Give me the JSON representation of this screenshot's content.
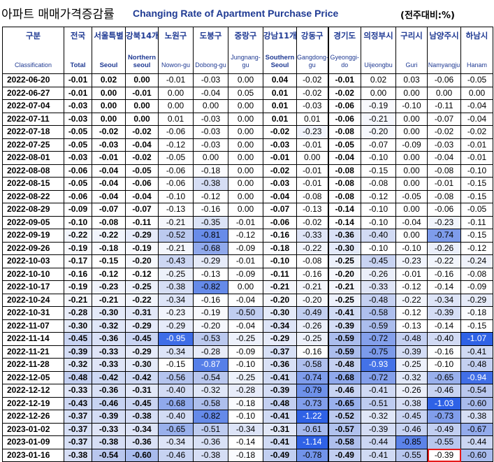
{
  "title": {
    "korean": "아파트 매매가격증감률",
    "english": "Changing Rate of Apartment Purchase Price",
    "unit": "(전주대비:%)"
  },
  "columns": [
    {
      "ko": "구분",
      "en": "Classification"
    },
    {
      "ko": "전국",
      "en": "Total"
    },
    {
      "ko": "서울특별",
      "en": "Seoul"
    },
    {
      "ko": "강북14개",
      "en": "Northern seoul"
    },
    {
      "ko": "노원구",
      "en": "Nowon-gu"
    },
    {
      "ko": "도봉구",
      "en": "Dobong-gu"
    },
    {
      "ko": "중랑구",
      "en": "Jungnang-gu"
    },
    {
      "ko": "강남11개",
      "en": "Southern Seoul"
    },
    {
      "ko": "강동구",
      "en": "Gangdong-gu"
    },
    {
      "ko": "경기도",
      "en": "Gyeonggi-do"
    },
    {
      "ko": "의정부시",
      "en": "Uijeongbu"
    },
    {
      "ko": "구리시",
      "en": "Guri"
    },
    {
      "ko": "남양주시",
      "en": "Namyangju"
    },
    {
      "ko": "하남시",
      "en": "Hanam"
    }
  ],
  "rows": [
    {
      "date": "2022-06-20",
      "values": [
        "-0.01",
        "0.02",
        "0.00",
        "-0.01",
        "-0.03",
        "0.00",
        "0.04",
        "-0.02",
        "-0.01",
        "0.02",
        "0.03",
        "-0.06",
        "-0.05"
      ]
    },
    {
      "date": "2022-06-27",
      "values": [
        "-0.01",
        "0.00",
        "-0.01",
        "0.00",
        "-0.04",
        "0.05",
        "0.01",
        "-0.02",
        "-0.02",
        "0.00",
        "0.00",
        "0.00",
        "0.00"
      ]
    },
    {
      "date": "2022-07-04",
      "values": [
        "-0.03",
        "0.00",
        "0.00",
        "0.00",
        "0.00",
        "0.00",
        "0.01",
        "-0.03",
        "-0.06",
        "-0.19",
        "-0.10",
        "-0.11",
        "-0.04"
      ]
    },
    {
      "date": "2022-07-11",
      "values": [
        "-0.03",
        "0.00",
        "0.00",
        "0.01",
        "-0.03",
        "0.00",
        "0.01",
        "0.01",
        "-0.06",
        "-0.21",
        "0.00",
        "-0.07",
        "-0.04"
      ]
    },
    {
      "date": "2022-07-18",
      "values": [
        "-0.05",
        "-0.02",
        "-0.02",
        "-0.06",
        "-0.03",
        "0.00",
        "-0.02",
        "-0.23",
        "-0.08",
        "-0.20",
        "0.00",
        "-0.02",
        "-0.02"
      ]
    },
    {
      "date": "2022-07-25",
      "values": [
        "-0.05",
        "-0.03",
        "-0.04",
        "-0.12",
        "-0.03",
        "0.00",
        "-0.03",
        "-0.01",
        "-0.05",
        "-0.07",
        "-0.09",
        "-0.03",
        "-0.01"
      ]
    },
    {
      "date": "2022-08-01",
      "values": [
        "-0.03",
        "-0.01",
        "-0.02",
        "-0.05",
        "0.00",
        "0.00",
        "-0.01",
        "0.00",
        "-0.04",
        "-0.10",
        "0.00",
        "-0.04",
        "-0.01"
      ]
    },
    {
      "date": "2022-08-08",
      "values": [
        "-0.06",
        "-0.04",
        "-0.05",
        "-0.06",
        "-0.18",
        "0.00",
        "-0.02",
        "-0.01",
        "-0.08",
        "-0.15",
        "0.00",
        "-0.08",
        "-0.10"
      ]
    },
    {
      "date": "2022-08-15",
      "values": [
        "-0.05",
        "-0.04",
        "-0.06",
        "-0.06",
        "-0.38",
        "0.00",
        "-0.03",
        "-0.01",
        "-0.08",
        "-0.08",
        "0.00",
        "-0.01",
        "-0.15"
      ]
    },
    {
      "date": "2022-08-22",
      "values": [
        "-0.06",
        "-0.04",
        "-0.04",
        "-0.10",
        "-0.12",
        "0.00",
        "-0.04",
        "-0.08",
        "-0.08",
        "-0.12",
        "-0.05",
        "-0.08",
        "-0.15"
      ]
    },
    {
      "date": "2022-08-29",
      "values": [
        "-0.09",
        "-0.07",
        "-0.07",
        "-0.13",
        "-0.16",
        "0.00",
        "-0.07",
        "-0.13",
        "-0.14",
        "-0.10",
        "0.00",
        "-0.06",
        "-0.05"
      ]
    },
    {
      "date": "2022-09-05",
      "values": [
        "-0.10",
        "-0.08",
        "-0.11",
        "-0.21",
        "-0.35",
        "-0.01",
        "-0.06",
        "-0.02",
        "-0.14",
        "-0.10",
        "-0.04",
        "-0.23",
        "-0.11"
      ]
    },
    {
      "date": "2022-09-19",
      "values": [
        "-0.22",
        "-0.22",
        "-0.29",
        "-0.52",
        "-0.81",
        "-0.12",
        "-0.16",
        "-0.33",
        "-0.36",
        "-0.40",
        "0.00",
        "-0.74",
        "-0.15"
      ]
    },
    {
      "date": "2022-09-26",
      "values": [
        "-0.19",
        "-0.18",
        "-0.19",
        "-0.21",
        "-0.68",
        "-0.09",
        "-0.18",
        "-0.22",
        "-0.30",
        "-0.10",
        "-0.10",
        "-0.26",
        "-0.12"
      ]
    },
    {
      "date": "2022-10-03",
      "values": [
        "-0.17",
        "-0.15",
        "-0.20",
        "-0.43",
        "-0.29",
        "-0.01",
        "-0.10",
        "-0.08",
        "-0.25",
        "-0.45",
        "-0.23",
        "-0.22",
        "-0.24"
      ]
    },
    {
      "date": "2022-10-10",
      "values": [
        "-0.16",
        "-0.12",
        "-0.12",
        "-0.25",
        "-0.13",
        "-0.09",
        "-0.11",
        "-0.16",
        "-0.20",
        "-0.26",
        "-0.01",
        "-0.16",
        "-0.08"
      ]
    },
    {
      "date": "2022-10-17",
      "values": [
        "-0.19",
        "-0.23",
        "-0.25",
        "-0.38",
        "-0.82",
        "0.00",
        "-0.21",
        "-0.21",
        "-0.21",
        "-0.33",
        "-0.12",
        "-0.14",
        "-0.09"
      ]
    },
    {
      "date": "2022-10-24",
      "values": [
        "-0.21",
        "-0.21",
        "-0.22",
        "-0.34",
        "-0.16",
        "-0.04",
        "-0.20",
        "-0.20",
        "-0.25",
        "-0.48",
        "-0.22",
        "-0.34",
        "-0.29"
      ]
    },
    {
      "date": "2022-10-31",
      "values": [
        "-0.28",
        "-0.30",
        "-0.31",
        "-0.23",
        "-0.19",
        "-0.50",
        "-0.30",
        "-0.49",
        "-0.41",
        "-0.58",
        "-0.12",
        "-0.39",
        "-0.18"
      ]
    },
    {
      "date": "2022-11-07",
      "values": [
        "-0.30",
        "-0.32",
        "-0.29",
        "-0.29",
        "-0.20",
        "-0.04",
        "-0.34",
        "-0.26",
        "-0.39",
        "-0.59",
        "-0.13",
        "-0.14",
        "-0.15"
      ]
    },
    {
      "date": "2022-11-14",
      "values": [
        "-0.45",
        "-0.36",
        "-0.45",
        "-0.95",
        "-0.53",
        "-0.25",
        "-0.29",
        "-0.25",
        "-0.59",
        "-0.72",
        "-0.48",
        "-0.40",
        "-1.07"
      ]
    },
    {
      "date": "2022-11-21",
      "values": [
        "-0.39",
        "-0.33",
        "-0.29",
        "-0.34",
        "-0.28",
        "-0.09",
        "-0.37",
        "-0.16",
        "-0.59",
        "-0.75",
        "-0.39",
        "-0.16",
        "-0.41"
      ]
    },
    {
      "date": "2022-11-28",
      "values": [
        "-0.32",
        "-0.33",
        "-0.30",
        "-0.15",
        "-0.87",
        "-0.10",
        "-0.36",
        "-0.58",
        "-0.48",
        "-0.93",
        "-0.25",
        "-0.10",
        "-0.48"
      ]
    },
    {
      "date": "2022-12-05",
      "values": [
        "-0.48",
        "-0.42",
        "-0.42",
        "-0.56",
        "-0.54",
        "-0.25",
        "-0.41",
        "-0.74",
        "-0.68",
        "-0.72",
        "-0.32",
        "-0.65",
        "-0.94"
      ]
    },
    {
      "date": "2022-12-12",
      "values": [
        "-0.33",
        "-0.36",
        "-0.31",
        "-0.40",
        "-0.32",
        "-0.28",
        "-0.39",
        "-0.79",
        "-0.46",
        "-0.41",
        "-0.26",
        "-0.46",
        "-0.54"
      ]
    },
    {
      "date": "2022-12-19",
      "values": [
        "-0.43",
        "-0.46",
        "-0.45",
        "-0.68",
        "-0.58",
        "-0.18",
        "-0.48",
        "-0.73",
        "-0.65",
        "-0.51",
        "-0.38",
        "-1.03",
        "-0.60"
      ]
    },
    {
      "date": "2022-12-26",
      "values": [
        "-0.37",
        "-0.39",
        "-0.38",
        "-0.40",
        "-0.82",
        "-0.10",
        "-0.41",
        "-1.22",
        "-0.52",
        "-0.32",
        "-0.45",
        "-0.73",
        "-0.38"
      ]
    },
    {
      "date": "2023-01-02",
      "values": [
        "-0.37",
        "-0.33",
        "-0.34",
        "-0.65",
        "-0.51",
        "-0.34",
        "-0.31",
        "-0.61",
        "-0.57",
        "-0.39",
        "-0.46",
        "-0.49",
        "-0.67"
      ]
    },
    {
      "date": "2023-01-09",
      "values": [
        "-0.37",
        "-0.38",
        "-0.36",
        "-0.34",
        "-0.36",
        "-0.14",
        "-0.41",
        "-1.14",
        "-0.58",
        "-0.44",
        "-0.85",
        "-0.55",
        "-0.44"
      ]
    },
    {
      "date": "2023-01-16",
      "values": [
        "-0.38",
        "-0.54",
        "-0.60",
        "-0.46",
        "-0.38",
        "-0.18",
        "-0.49",
        "-0.78",
        "-0.49",
        "-0.41",
        "-0.55",
        "-0.39",
        "-0.60"
      ]
    }
  ],
  "highlight": {
    "row": 29,
    "col": 11,
    "color": "#e41a1a"
  },
  "scale_colors": {
    "low": "#ffffff",
    "mid": "#b7c6ee",
    "high": "#2f62e6"
  }
}
